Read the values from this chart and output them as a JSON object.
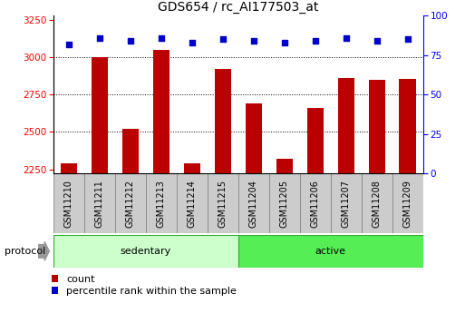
{
  "title": "GDS654 / rc_AI177503_at",
  "samples": [
    "GSM11210",
    "GSM11211",
    "GSM11212",
    "GSM11213",
    "GSM11214",
    "GSM11215",
    "GSM11204",
    "GSM11205",
    "GSM11206",
    "GSM11207",
    "GSM11208",
    "GSM11209"
  ],
  "bar_values": [
    2290,
    3000,
    2520,
    3050,
    2290,
    2920,
    2690,
    2320,
    2660,
    2860,
    2850,
    2855
  ],
  "percentile_values": [
    82,
    86,
    84,
    86,
    83,
    85,
    84,
    83,
    84,
    86,
    84,
    85
  ],
  "groups": [
    {
      "label": "sedentary",
      "start": 0,
      "end": 6,
      "color": "#ccffcc"
    },
    {
      "label": "active",
      "start": 6,
      "end": 12,
      "color": "#55ee55"
    }
  ],
  "protocol_label": "protocol",
  "ylim_left": [
    2220,
    3280
  ],
  "ylim_right": [
    0,
    100
  ],
  "yticks_left": [
    2250,
    2500,
    2750,
    3000,
    3250
  ],
  "yticks_right": [
    0,
    25,
    50,
    75,
    100
  ],
  "bar_color": "#bb0000",
  "dot_color": "#0000cc",
  "sample_box_color": "#cccccc",
  "sample_box_edge": "#888888",
  "title_fontsize": 10,
  "tick_fontsize": 7.5,
  "sample_fontsize": 7,
  "legend_fontsize": 8
}
